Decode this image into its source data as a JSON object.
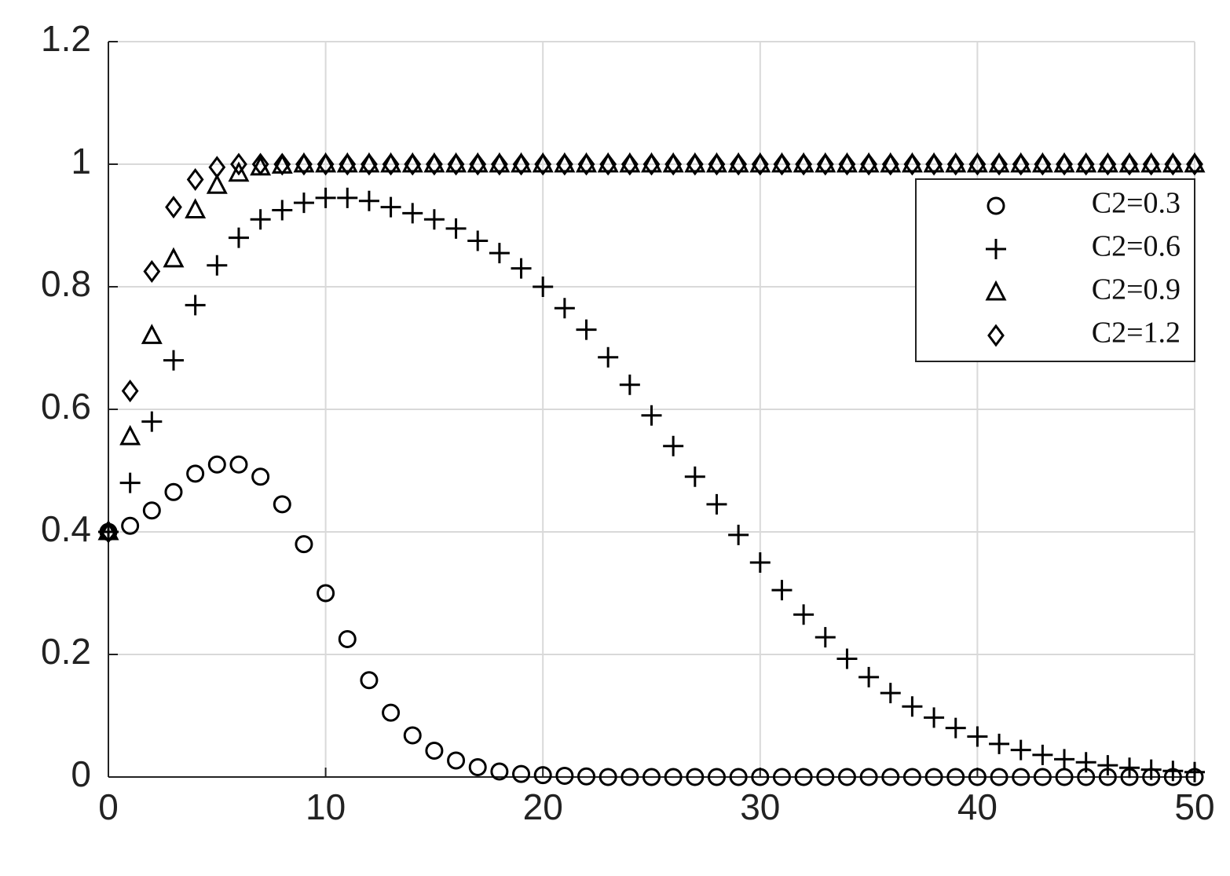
{
  "chart_data": {
    "type": "scatter",
    "x": [
      0,
      1,
      2,
      3,
      4,
      5,
      6,
      7,
      8,
      9,
      10,
      11,
      12,
      13,
      14,
      15,
      16,
      17,
      18,
      19,
      20,
      21,
      22,
      23,
      24,
      25,
      26,
      27,
      28,
      29,
      30,
      31,
      32,
      33,
      34,
      35,
      36,
      37,
      38,
      39,
      40,
      41,
      42,
      43,
      44,
      45,
      46,
      47,
      48,
      49,
      50
    ],
    "series": [
      {
        "name": "C2=0.3",
        "color": "#000000",
        "marker": "circle",
        "values": [
          0.4,
          0.41,
          0.435,
          0.465,
          0.495,
          0.51,
          0.51,
          0.49,
          0.445,
          0.38,
          0.3,
          0.225,
          0.158,
          0.105,
          0.068,
          0.043,
          0.027,
          0.016,
          0.009,
          0.005,
          0.003,
          0.002,
          0.001,
          0,
          0,
          0,
          0,
          0,
          0,
          0,
          0,
          0,
          0,
          0,
          0,
          0,
          0,
          0,
          0,
          0,
          0,
          0,
          0,
          0,
          0,
          0,
          0,
          0,
          0,
          0,
          0
        ]
      },
      {
        "name": "C2=0.6",
        "color": "#000000",
        "marker": "plus",
        "values": [
          0.4,
          0.48,
          0.58,
          0.68,
          0.77,
          0.835,
          0.88,
          0.91,
          0.925,
          0.937,
          0.945,
          0.945,
          0.94,
          0.93,
          0.92,
          0.91,
          0.895,
          0.875,
          0.855,
          0.83,
          0.8,
          0.765,
          0.73,
          0.685,
          0.64,
          0.59,
          0.54,
          0.49,
          0.445,
          0.395,
          0.35,
          0.305,
          0.265,
          0.228,
          0.193,
          0.163,
          0.137,
          0.115,
          0.097,
          0.08,
          0.066,
          0.054,
          0.044,
          0.036,
          0.029,
          0.024,
          0.019,
          0.015,
          0.012,
          0.01,
          0.008
        ]
      },
      {
        "name": "C2=0.9",
        "color": "#000000",
        "marker": "triangle",
        "values": [
          0.4,
          0.555,
          0.72,
          0.845,
          0.925,
          0.965,
          0.985,
          0.995,
          0.998,
          1,
          1,
          1,
          1,
          1,
          1,
          1,
          1,
          1,
          1,
          1,
          1,
          1,
          1,
          1,
          1,
          1,
          1,
          1,
          1,
          1,
          1,
          1,
          1,
          1,
          1,
          1,
          1,
          1,
          1,
          1,
          1,
          1,
          1,
          1,
          1,
          1,
          1,
          1,
          1,
          1,
          1
        ]
      },
      {
        "name": "C2=1.2",
        "color": "#000000",
        "marker": "diamond",
        "values": [
          0.4,
          0.63,
          0.825,
          0.93,
          0.975,
          0.995,
          1,
          1,
          1,
          1,
          1,
          1,
          1,
          1,
          1,
          1,
          1,
          1,
          1,
          1,
          1,
          1,
          1,
          1,
          1,
          1,
          1,
          1,
          1,
          1,
          1,
          1,
          1,
          1,
          1,
          1,
          1,
          1,
          1,
          1,
          1,
          1,
          1,
          1,
          1,
          1,
          1,
          1,
          1,
          1,
          1
        ]
      }
    ],
    "xlim": [
      0,
      50
    ],
    "xticks": [
      0,
      10,
      20,
      30,
      40,
      50
    ],
    "ylim": [
      0,
      1.2
    ],
    "yticks": [
      0,
      0.2,
      0.4,
      0.6,
      0.8,
      1,
      1.2
    ],
    "grid": true,
    "legend": "upper right"
  }
}
